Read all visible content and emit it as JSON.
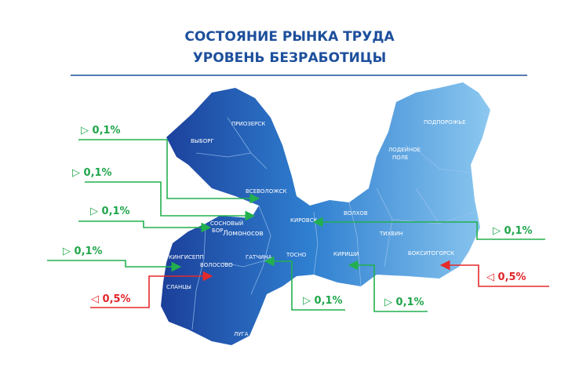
{
  "header": {
    "title_line1": "СОСТОЯНИЕ РЫНКА ТРУДА",
    "title_line2": "УРОВЕНЬ БЕЗРАБОТИЦЫ"
  },
  "districts": [
    "ВЫБОРГ",
    "ПРИОЗЕРСК",
    "ВСЕВОЛОЖСК",
    "СОСНОВЫЙ",
    "БОР",
    "Ломоносов",
    "КИРОВСК",
    "ВОЛХОВ",
    "ПОДПОРОЖЬЕ",
    "ЛОДЕЙНОЕ",
    "ПОЛЕ",
    "ТИХВИН",
    "БОКСИТОГОРСК",
    "КИРИШИ",
    "ТОСНО",
    "ГАТЧИНА",
    "ВОЛОСОВО",
    "КИНГИСЕПП",
    "СЛАНЦЫ",
    "ЛУГА"
  ],
  "callouts": [
    "0,1%",
    "0,1%",
    "0,1%",
    "0,1%",
    "0,5%",
    "0,1%",
    "0,5%",
    "0,1%",
    "0,1%"
  ]
}
